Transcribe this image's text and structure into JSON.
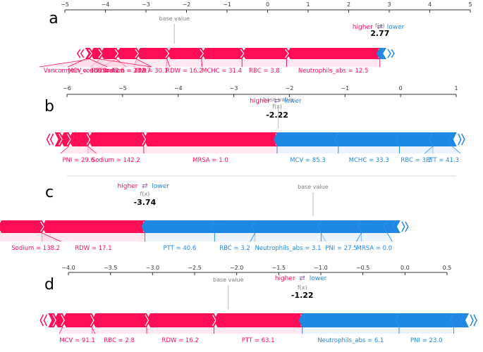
{
  "colors": {
    "positive": "#ff0d57",
    "negative": "#1e88e5",
    "axis": "#333333",
    "muted": "#7f7f7f",
    "positive_fill": "#ffc3d5",
    "negative_fill": "#d1e6fa"
  },
  "legend": {
    "higher": "higher",
    "arrows": "⇄",
    "lower": "lower"
  },
  "labels": {
    "fx": "f(x)",
    "base_value": "base value"
  },
  "chart_data": [
    {
      "type": "force",
      "panel": "a",
      "xlim": [
        -5,
        5
      ],
      "ticks": [
        -5,
        -4,
        -3,
        -2,
        -1,
        0,
        1,
        2,
        3,
        4,
        5
      ],
      "base_value": -2.3,
      "output_value": 2.77,
      "output_label": "2.77",
      "positive": [
        {
          "label": "Neutrophils_abs = 12.5",
          "value": 2.3
        },
        {
          "label": "RBC = 3.8",
          "value": 1.1
        },
        {
          "label": "MCHC = 31.4",
          "value": 1.0
        },
        {
          "label": "RDW = 16.2",
          "value": 0.85
        },
        {
          "label": "PNI = 30.1",
          "value": 0.75
        },
        {
          "label": "Sodium = 142.7",
          "value": 0.5
        },
        {
          "label": "PTT = 42.5",
          "value": 0.4
        },
        {
          "label": "Vancomycin_concentration = 23.9",
          "value": 0.25
        },
        {
          "label": "MCV = 100.0",
          "value": 0.12
        }
      ],
      "negative": [
        {
          "label": "",
          "value": 0.1
        },
        {
          "label": "",
          "value": 0.06
        }
      ]
    },
    {
      "type": "force",
      "panel": "b",
      "xlim": [
        -6,
        1
      ],
      "ticks": [
        -6,
        -5,
        -4,
        -3,
        -2,
        -1,
        0,
        1
      ],
      "base_value": -2.2,
      "output_value": -2.22,
      "output_label": "-2.22",
      "positive": [
        {
          "label": "MRSA = 1.0",
          "value": 2.4
        },
        {
          "label": "Sodium = 142.2",
          "value": 1.0
        },
        {
          "label": "PNI = 29.6",
          "value": 0.35
        },
        {
          "label": "",
          "value": 0.15
        },
        {
          "label": "",
          "value": 0.1
        }
      ],
      "negative": [
        {
          "label": "MCV = 85.3",
          "value": 1.1
        },
        {
          "label": "MCHC = 33.3",
          "value": 1.1
        },
        {
          "label": "RBC = 3.2",
          "value": 0.6
        },
        {
          "label": "PTT = 41.3",
          "value": 0.35
        },
        {
          "label": "",
          "value": 0.08
        }
      ]
    },
    {
      "type": "force",
      "panel": "c",
      "base_value": -1.45,
      "output_value": -3.74,
      "output_label": "-3.74",
      "positive": [
        {
          "label": "RDW = 17.1",
          "value": 1.4
        },
        {
          "label": "Sodium = 138.2",
          "value": 0.6
        },
        {
          "label": "",
          "value": 0.15
        }
      ],
      "negative": [
        {
          "label": "PTT = 40.6",
          "value": 0.95
        },
        {
          "label": "RBC = 3.2",
          "value": 0.55
        },
        {
          "label": "Neutrophils_abs = 3.1",
          "value": 0.9
        },
        {
          "label": "PNI = 27.5",
          "value": 0.55
        },
        {
          "label": "MRSA = 0.0",
          "value": 0.35
        },
        {
          "label": "",
          "value": 0.12
        },
        {
          "label": "",
          "value": 0.06
        }
      ]
    },
    {
      "type": "force",
      "panel": "d",
      "xlim": [
        -4.0,
        0.5
      ],
      "ticks": [
        -4.0,
        -3.5,
        -3.0,
        -2.5,
        -2.0,
        -1.5,
        -1.0,
        -0.5,
        0.0,
        0.5
      ],
      "tick_labels": [
        "−4.0",
        "−3.5",
        "−3.0",
        "−2.5",
        "−2.0",
        "−1.5",
        "−1.0",
        "−0.5",
        "0.0",
        "0.5"
      ],
      "base_value": -2.1,
      "output_value": -1.22,
      "output_label": "-1.22",
      "positive": [
        {
          "label": "PTT = 63.1",
          "value": 1.05
        },
        {
          "label": "RDW = 16.2",
          "value": 0.8
        },
        {
          "label": "RBC = 2.8",
          "value": 0.65
        },
        {
          "label": "MCV = 91.1",
          "value": 0.35
        },
        {
          "label": "",
          "value": 0.1
        },
        {
          "label": "",
          "value": 0.07
        }
      ],
      "negative": [
        {
          "label": "Neutrophils_abs = 6.1",
          "value": 1.15
        },
        {
          "label": "PNI = 23.0",
          "value": 0.65
        },
        {
          "label": "",
          "value": 0.12
        },
        {
          "label": "",
          "value": 0.06
        }
      ]
    }
  ]
}
